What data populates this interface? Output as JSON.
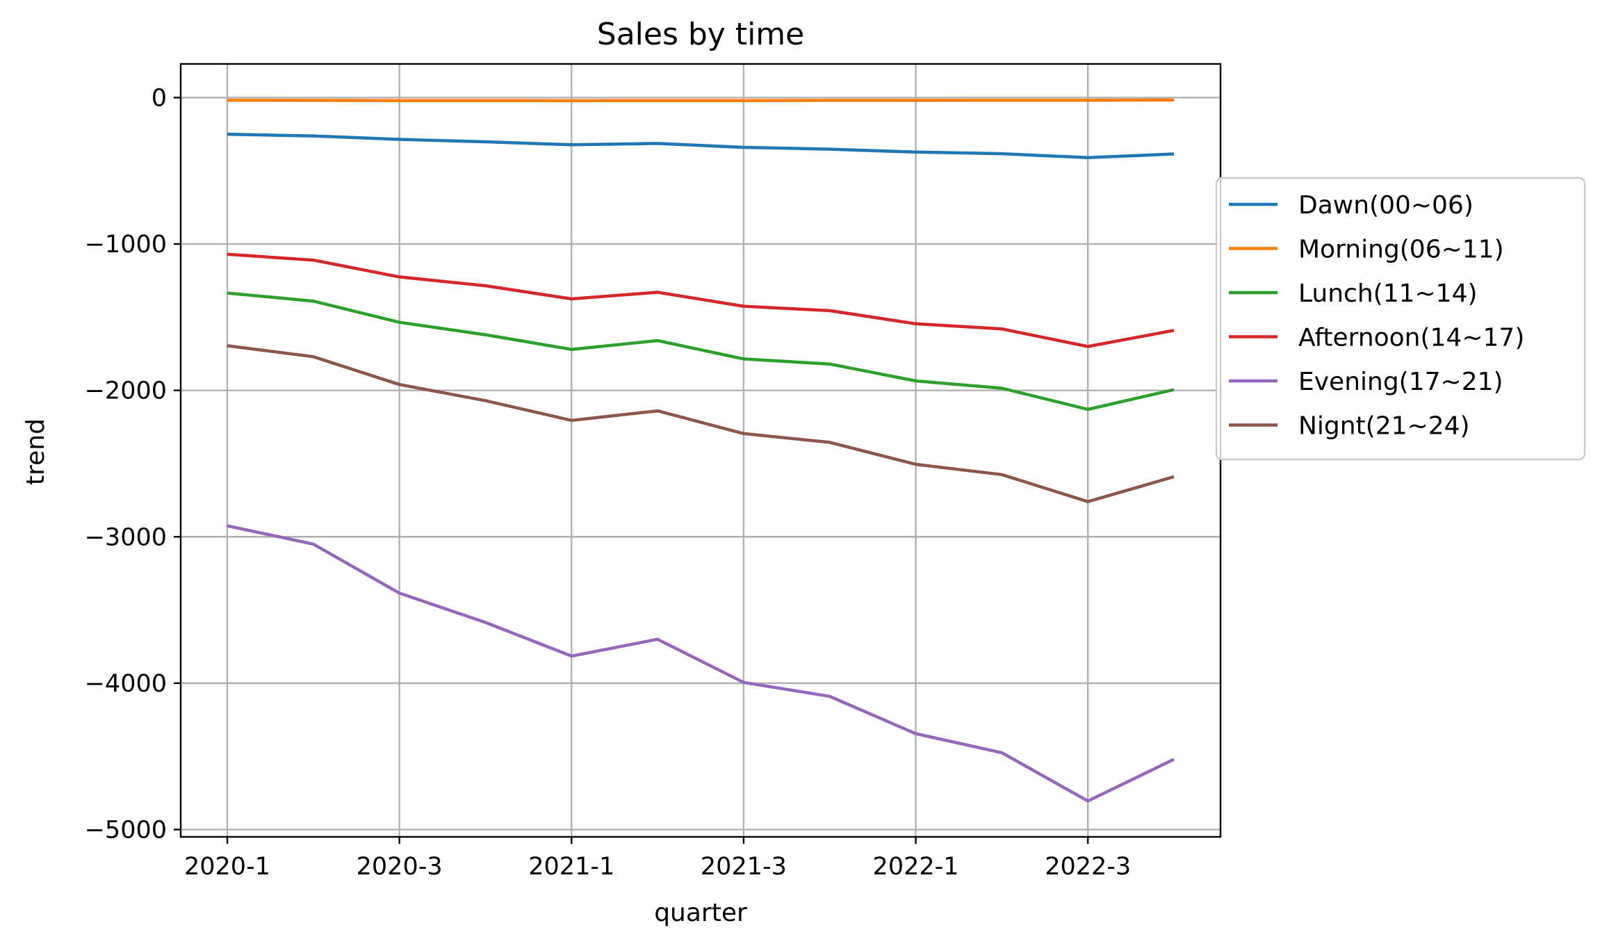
{
  "chart_data": {
    "type": "line",
    "title": "Sales by time",
    "xlabel": "quarter",
    "ylabel": "trend",
    "categories": [
      "2020-1",
      "2020-2",
      "2020-3",
      "2020-4",
      "2021-1",
      "2021-2",
      "2021-3",
      "2021-4",
      "2022-1",
      "2022-2",
      "2022-3",
      "2022-4"
    ],
    "xtick_labels": [
      "2020-1",
      "2020-3",
      "2021-1",
      "2021-3",
      "2022-1",
      "2022-3"
    ],
    "ylim": [
      -5050,
      230
    ],
    "yticks": [
      0,
      -1000,
      -2000,
      -3000,
      -4000,
      -5000
    ],
    "ytick_labels": [
      "0",
      "−1000",
      "−2000",
      "−3000",
      "−4000",
      "−5000"
    ],
    "grid": true,
    "legend_position": "right, outside plot",
    "series": [
      {
        "name": "Dawn(00~06)",
        "color": "#1f77b4",
        "values": [
          -250,
          -262,
          -285,
          -302,
          -322,
          -313,
          -340,
          -352,
          -372,
          -383,
          -410,
          -385
        ]
      },
      {
        "name": "Morning(06~11)",
        "color": "#ff7f0e",
        "values": [
          -18,
          -19,
          -20,
          -20,
          -21,
          -20,
          -20,
          -19,
          -19,
          -18,
          -18,
          -17
        ]
      },
      {
        "name": "Lunch(11~14)",
        "color": "#2ca02c",
        "values": [
          -1335,
          -1390,
          -1535,
          -1620,
          -1720,
          -1660,
          -1785,
          -1820,
          -1935,
          -1985,
          -2130,
          -1995
        ]
      },
      {
        "name": "Afternoon(14~17)",
        "color": "#d62728",
        "values": [
          -1070,
          -1110,
          -1225,
          -1285,
          -1375,
          -1330,
          -1425,
          -1455,
          -1545,
          -1580,
          -1700,
          -1590
        ]
      },
      {
        "name": "Evening(17~21)",
        "color": "#9467bd",
        "values": [
          -2925,
          -3050,
          -3385,
          -3585,
          -3815,
          -3700,
          -3995,
          -4090,
          -4345,
          -4475,
          -4805,
          -4520
        ]
      },
      {
        "name": "Nignt(21~24)",
        "color": "#8c564b",
        "values": [
          -1695,
          -1770,
          -1960,
          -2070,
          -2205,
          -2140,
          -2295,
          -2355,
          -2505,
          -2575,
          -2760,
          -2590
        ]
      }
    ]
  }
}
